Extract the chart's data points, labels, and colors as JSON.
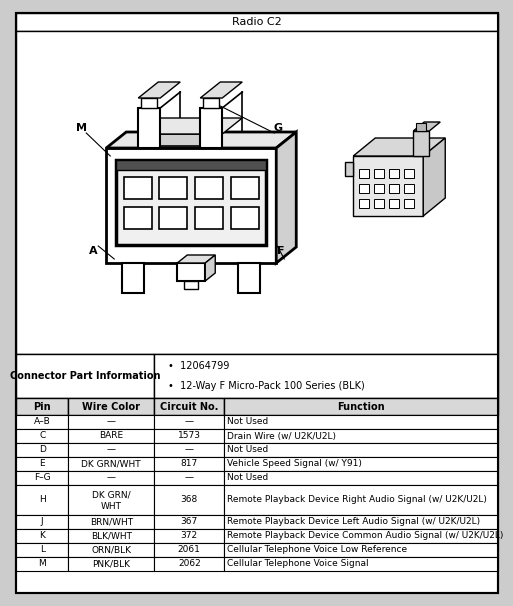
{
  "title": "Radio C2",
  "connector_info_label": "Connector Part Information",
  "connector_info_items": [
    "12064799",
    "12-Way F Micro-Pack 100 Series (BLK)"
  ],
  "table_headers": [
    "Pin",
    "Wire Color",
    "Circuit No.",
    "Function"
  ],
  "table_rows": [
    [
      "A–B",
      "—",
      "—",
      "Not Used"
    ],
    [
      "C",
      "BARE",
      "1573",
      "Drain Wire (w/ U2K/U2L)"
    ],
    [
      "D",
      "—",
      "—",
      "Not Used"
    ],
    [
      "E",
      "DK GRN/WHT",
      "817",
      "Vehicle Speed Signal (w/ Y91)"
    ],
    [
      "F–G",
      "—",
      "—",
      "Not Used"
    ],
    [
      "H",
      "DK GRN/\nWHT",
      "368",
      "Remote Playback Device Right Audio Signal (w/ U2K/U2L)"
    ],
    [
      "J",
      "BRN/WHT",
      "367",
      "Remote Playback Device Left Audio Signal (w/ U2K/U2L)"
    ],
    [
      "K",
      "BLK/WHT",
      "372",
      "Remote Playback Device Common Audio Signal (w/ U2K/U2L)"
    ],
    [
      "L",
      "ORN/BLK",
      "2061",
      "Cellular Telephone Voice Low Reference"
    ],
    [
      "M",
      "PNK/BLK",
      "2062",
      "Cellular Telephone Voice Signal"
    ]
  ],
  "background_color": "#ffffff",
  "border_color": "#000000",
  "header_bg": "#d8d8d8",
  "fig_bg": "#cccccc"
}
